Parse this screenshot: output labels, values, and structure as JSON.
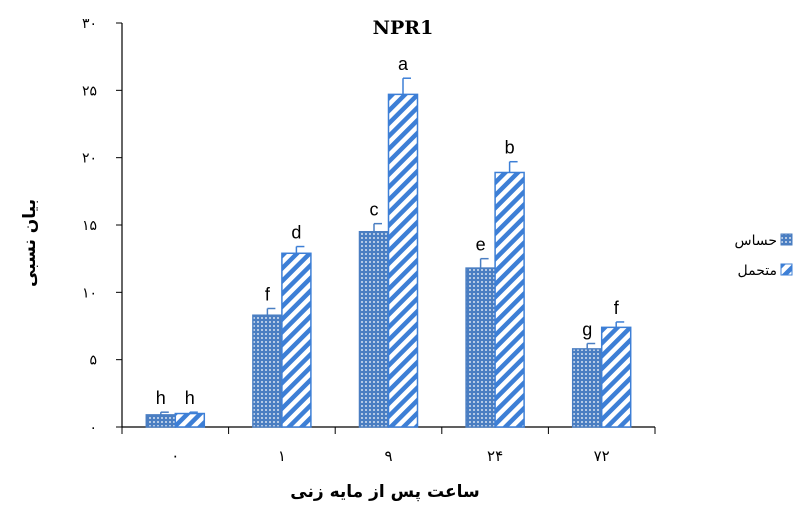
{
  "chart_data": {
    "type": "bar",
    "title": "NPR1",
    "xlabel": "ساعت پس از مایه زنی",
    "ylabel": "بیان نسبی",
    "categories": [
      "۰",
      "۱",
      "۹",
      "۲۴",
      "۷۲"
    ],
    "ylim": [
      0,
      30
    ],
    "yticks": [
      "۰",
      "۵",
      "۱۰",
      "۱۵",
      "۲۰",
      "۲۵",
      "۳۰"
    ],
    "grid": false,
    "legend_position": "right",
    "series": [
      {
        "name": "حساس",
        "values": [
          0.9,
          8.3,
          14.5,
          11.8,
          5.8
        ],
        "errors": [
          0.2,
          0.5,
          0.6,
          0.7,
          0.4
        ],
        "labels": [
          "h",
          "f",
          "c",
          "e",
          "g"
        ],
        "color": "#4a7ec2",
        "pattern": "dots"
      },
      {
        "name": "متحمل",
        "values": [
          1.0,
          12.9,
          24.7,
          18.9,
          7.4
        ],
        "errors": [
          0.1,
          0.5,
          1.2,
          0.8,
          0.4
        ],
        "labels": [
          "h",
          "d",
          "a",
          "b",
          "f"
        ],
        "color": "#3d7fd6",
        "pattern": "diagonal-stripes"
      }
    ]
  }
}
